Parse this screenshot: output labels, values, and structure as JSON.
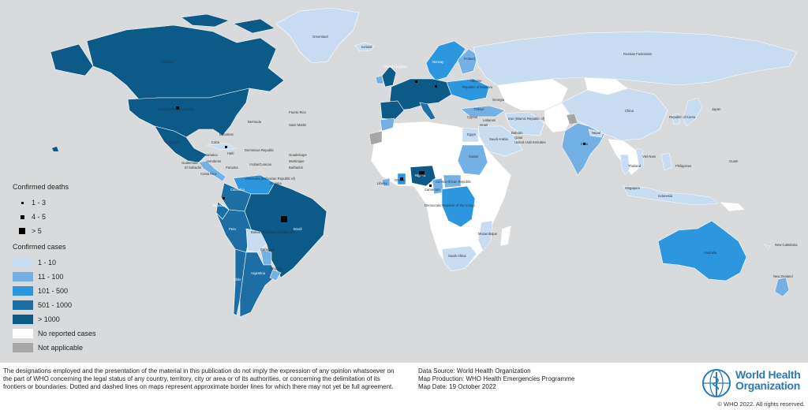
{
  "map": {
    "colors": {
      "ocean": "#d9dadb",
      "c1_10": "#c8ddf2",
      "c11_100": "#73b1e4",
      "c101_500": "#2c96de",
      "c501_1000": "#1e6ea6",
      "c1000plus": "#0b5a87",
      "no_reported": "#ffffff",
      "not_applicable": "#a6a6a6"
    },
    "labels": {
      "greenland": "Greenland",
      "iceland": "Iceland",
      "canada": "Canada",
      "usa": "United States of America",
      "mexico": "Mexico",
      "bermuda": "Bermuda",
      "bahamas": "Bahamas",
      "cuba": "Cuba",
      "jamaica": "Jamaica",
      "haiti": "Haiti",
      "dominican_republic": "Dominican Republic",
      "puerto_rico": "Puerto Rico",
      "saint_martin": "Saint Martin",
      "guadeloupe": "Guadeloupe",
      "martinique": "Martinique",
      "aruba_curacao": "Aruba/Curacao",
      "barbados": "Barbados",
      "guatemala": "Guatemala",
      "el_salvador": "El Salvador",
      "honduras": "Honduras",
      "costa_rica": "Costa Rica",
      "panama": "Panama",
      "colombia": "Colombia",
      "venezuela": "Venezuela (Bolivarian Republic of)",
      "guyana": "Guyana",
      "ecuador": "Ecuador",
      "peru": "Peru",
      "brazil": "Brazil",
      "bolivia": "Bolivia (Plurinational State of)",
      "chile": "Chile",
      "paraguay": "Paraguay",
      "argentina": "Argentina",
      "uruguay": "Uruguay",
      "uk": "United Kingdom",
      "norway": "Norway",
      "finland": "Finland",
      "russia": "Russian Federation",
      "republic_of_moldova": "Republic of Moldova",
      "ukraine": "Ukraine",
      "georgia": "Georgia",
      "turkey": "Türkiye",
      "cyprus": "Cyprus",
      "lebanon": "Lebanon",
      "israel": "Israel",
      "iran": "Iran (Islamic Republic of)",
      "egypt": "Egypt",
      "saudi_arabia": "Saudi Arabia",
      "qatar": "Qatar",
      "uae": "United Arab Emirates",
      "bahrain": "Bahrain",
      "sudan": "Sudan",
      "nigeria": "Nigeria",
      "ghana": "Ghana",
      "liberia": "Liberia",
      "cameroon": "Cameroon",
      "central_african_republic": "Central African Republic",
      "drc": "Democratic Republic of the Congo",
      "mozambique": "Mozambique",
      "south_africa": "South Africa",
      "india": "India",
      "nepal": "Nepal",
      "china": "China",
      "republic_of_korea": "Republic of Korea",
      "japan": "Japan",
      "viet_nam": "Viet Nam",
      "thailand": "Thailand",
      "philippines": "Philippines",
      "singapore": "Singapore",
      "indonesia": "Indonesia",
      "guam": "Guam",
      "australia": "Australia",
      "new_caledonia": "New Caledonia",
      "new_zealand": "New Zealand"
    }
  },
  "legend": {
    "deaths_title": "Confirmed deaths",
    "deaths": [
      {
        "label": "1 - 3"
      },
      {
        "label": "4 - 5"
      },
      {
        "label": "> 5"
      }
    ],
    "cases_title": "Confirmed cases",
    "cases": [
      {
        "label": "1 - 10",
        "color": "#c8ddf2"
      },
      {
        "label": "11 - 100",
        "color": "#73b1e4"
      },
      {
        "label": "101 - 500",
        "color": "#2c96de"
      },
      {
        "label": "501 - 1000",
        "color": "#1e6ea6"
      },
      {
        "label": "> 1000",
        "color": "#0b5a87"
      },
      {
        "label": "No reported cases",
        "color": "#ffffff"
      },
      {
        "label": "Not applicable",
        "color": "#a6a6a6"
      }
    ]
  },
  "footer": {
    "disclaimer": "The designations employed and the presentation of the material in this publication do not imply the expression of any opinion whatsoever on the part of WHO concerning the legal status of any country, territory, city or area or of its authorities, or concerning the delimitation of its frontiers or boundaries. Dotted and dashed lines on maps represent approximate border lines for which there may not yet be full agreement.",
    "data_source": "Data Source: World Health Organization",
    "map_production": "Map Production: WHO Health Emergencies Programme",
    "map_date": "Map Date: 19 October 2022",
    "org_name_line1": "World Health",
    "org_name_line2": "Organization",
    "copyright": "© WHO 2022. All rights reserved."
  }
}
